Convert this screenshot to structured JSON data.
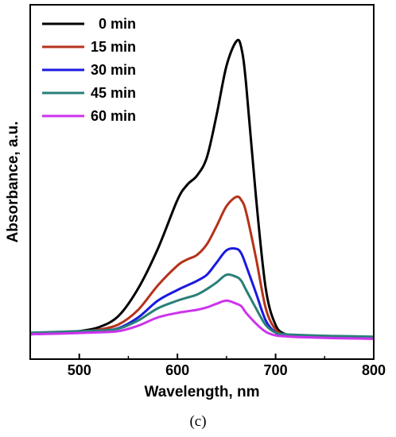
{
  "panel_label": "(c)",
  "chart_data": {
    "type": "line",
    "xlabel": "Wavelength, nm",
    "ylabel": "Absorbance, a.u.",
    "xlim": [
      450,
      800
    ],
    "ylim": [
      0,
      1.0
    ],
    "x_ticks": [
      500,
      600,
      700,
      800
    ],
    "y_ticks_shown": false,
    "legend_position": "top-left",
    "x": [
      450,
      480,
      500,
      520,
      540,
      560,
      580,
      600,
      610,
      620,
      630,
      640,
      650,
      660,
      665,
      670,
      680,
      690,
      700,
      710,
      720,
      740,
      760,
      780,
      800
    ],
    "series": [
      {
        "name": "0 min",
        "color": "#000000",
        "values": [
          0.04,
          0.045,
          0.05,
          0.063,
          0.1,
          0.19,
          0.32,
          0.48,
          0.53,
          0.56,
          0.62,
          0.76,
          0.92,
          1.0,
          0.98,
          0.86,
          0.49,
          0.19,
          0.07,
          0.04,
          0.035,
          0.032,
          0.03,
          0.028,
          0.026
        ]
      },
      {
        "name": "15 min",
        "color": "#b5321a",
        "values": [
          0.04,
          0.044,
          0.048,
          0.055,
          0.072,
          0.12,
          0.2,
          0.265,
          0.285,
          0.3,
          0.335,
          0.395,
          0.46,
          0.49,
          0.48,
          0.44,
          0.29,
          0.125,
          0.055,
          0.038,
          0.033,
          0.03,
          0.028,
          0.027,
          0.025
        ]
      },
      {
        "name": "30 min",
        "color": "#1a1ae0",
        "values": [
          0.04,
          0.043,
          0.046,
          0.05,
          0.06,
          0.095,
          0.15,
          0.185,
          0.2,
          0.215,
          0.235,
          0.275,
          0.315,
          0.32,
          0.305,
          0.265,
          0.175,
          0.085,
          0.045,
          0.035,
          0.032,
          0.03,
          0.028,
          0.027,
          0.026
        ]
      },
      {
        "name": "45 min",
        "color": "#2a7f7a",
        "values": [
          0.045,
          0.048,
          0.05,
          0.052,
          0.058,
          0.085,
          0.125,
          0.15,
          0.16,
          0.17,
          0.188,
          0.21,
          0.235,
          0.228,
          0.215,
          0.185,
          0.125,
          0.07,
          0.045,
          0.04,
          0.038,
          0.036,
          0.034,
          0.033,
          0.032
        ]
      },
      {
        "name": "60 min",
        "color": "#cc33ee",
        "values": [
          0.04,
          0.042,
          0.044,
          0.046,
          0.05,
          0.068,
          0.095,
          0.11,
          0.115,
          0.12,
          0.128,
          0.14,
          0.15,
          0.14,
          0.132,
          0.11,
          0.075,
          0.048,
          0.036,
          0.033,
          0.031,
          0.029,
          0.027,
          0.026,
          0.025
        ]
      }
    ]
  }
}
